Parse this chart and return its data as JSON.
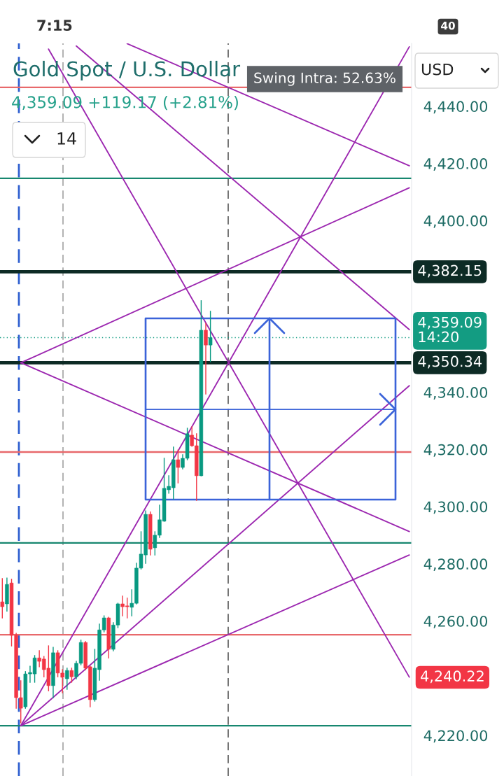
{
  "chart_data": {
    "type": "candlestick",
    "title": "Gold Spot / U.S. Dollar",
    "subtitle": "4,359.09 +119.17 (+2.81%)",
    "categories": [
      null,
      null,
      null,
      null,
      null,
      null,
      null,
      null,
      null,
      null,
      null,
      null,
      null,
      null,
      null,
      null,
      null,
      null,
      null,
      null,
      null,
      null,
      null,
      null,
      null,
      null,
      null,
      null,
      null,
      null,
      null,
      null,
      null,
      null,
      null,
      null,
      null,
      null,
      null,
      null,
      null,
      null,
      null,
      null,
      null,
      null,
      null,
      null,
      null,
      null,
      null,
      null,
      null,
      null,
      null,
      null,
      null,
      null,
      null,
      null,
      null,
      null,
      null,
      null,
      null,
      null,
      null,
      null,
      null,
      null,
      null,
      null,
      null,
      null,
      null,
      null,
      null,
      null,
      null,
      null,
      null,
      null,
      null,
      null,
      null,
      null,
      null,
      null,
      null
    ],
    "ohlc": [
      [
        4266.7,
        4274.8,
        4261.1,
        4265.0
      ],
      [
        4266.0,
        4275.0,
        4263.5,
        4272.8
      ],
      [
        4273.3,
        4274.6,
        4251.3,
        4255.0
      ],
      [
        4255.0,
        4255.7,
        4229.5,
        4233.2
      ],
      [
        4233.2,
        4239.1,
        4224.4,
        4229.5
      ],
      [
        4230.0,
        4242.3,
        4229.5,
        4241.5
      ],
      [
        4241.5,
        4244.2,
        4238.6,
        4242.0
      ],
      [
        4241.5,
        4247.9,
        4238.6,
        4247.1
      ],
      [
        4247.1,
        4249.6,
        4244.0,
        4245.9
      ],
      [
        4246.7,
        4247.6,
        4240.5,
        4243.0
      ],
      [
        4243.5,
        4251.3,
        4235.6,
        4237.4
      ],
      [
        4237.4,
        4250.8,
        4233.2,
        4248.9
      ],
      [
        4248.9,
        4249.6,
        4240.5,
        4241.8
      ],
      [
        4241.8,
        4243.0,
        4234.9,
        4240.3
      ],
      [
        4239.8,
        4243.5,
        4236.1,
        4242.7
      ],
      [
        4242.7,
        4243.5,
        4238.6,
        4240.5
      ],
      [
        4240.5,
        4245.9,
        4239.8,
        4245.2
      ],
      [
        4245.2,
        4253.3,
        4244.7,
        4252.5
      ],
      [
        4252.5,
        4252.8,
        4243.0,
        4243.5
      ],
      [
        4244.0,
        4244.2,
        4230.0,
        4232.5
      ],
      [
        4232.5,
        4250.1,
        4232.0,
        4243.5
      ],
      [
        4243.0,
        4258.9,
        4239.3,
        4256.9
      ],
      [
        4256.9,
        4261.8,
        4256.2,
        4261.1
      ],
      [
        4261.1,
        4261.3,
        4247.1,
        4250.1
      ],
      [
        4250.1,
        4259.4,
        4249.6,
        4258.6
      ],
      [
        4258.6,
        4266.2,
        4257.7,
        4266.0
      ],
      [
        4266.0,
        4268.7,
        4261.8,
        4265.0
      ],
      [
        4265.3,
        4268.0,
        4261.1,
        4265.0
      ],
      [
        4264.8,
        4270.9,
        4261.8,
        4266.2
      ],
      [
        4266.2,
        4280.2,
        4266.0,
        4278.5
      ],
      [
        4278.5,
        4291.2,
        4278.2,
        4283.4
      ],
      [
        4283.1,
        4298.5,
        4280.2,
        4297.3
      ],
      [
        4297.3,
        4298.1,
        4283.1,
        4285.1
      ],
      [
        4285.6,
        4291.2,
        4283.1,
        4290.0
      ],
      [
        4290.0,
        4300.5,
        4289.2,
        4295.4
      ],
      [
        4294.9,
        4316.9,
        4294.9,
        4306.4
      ],
      [
        4305.9,
        4310.8,
        4304.7,
        4307.1
      ],
      [
        4306.6,
        4320.8,
        4302.7,
        4316.4
      ],
      [
        4316.4,
        4319.8,
        4308.3,
        4313.7
      ],
      [
        4313.7,
        4318.1,
        4313.2,
        4316.9
      ],
      [
        4316.9,
        4327.4,
        4316.4,
        4325.5
      ],
      [
        4325.0,
        4327.9,
        4321.1,
        4321.3
      ],
      [
        4321.3,
        4325.5,
        4302.2,
        4310.8
      ],
      [
        4310.8,
        4372.0,
        4310.8,
        4361.7
      ],
      [
        4361.7,
        4364.1,
        4339.4,
        4356.5
      ],
      [
        4356.5,
        4368.3,
        4350.7,
        4359.09
      ],
      null,
      null,
      null,
      null,
      null,
      null,
      null,
      null,
      null,
      null,
      null,
      null,
      null,
      null,
      null,
      null,
      null,
      null,
      null,
      null,
      null,
      null,
      null,
      null,
      null,
      null,
      null,
      null,
      null,
      null,
      null,
      null,
      null,
      null,
      null,
      null,
      null,
      null,
      null,
      null,
      null,
      null,
      null
    ],
    "colors": [
      "#f23645",
      "#089981",
      "#f23645",
      "#f23645",
      "#f23645",
      "#089981",
      "#089981",
      "#089981",
      "#f23645",
      "#f23645",
      "#f23645",
      "#089981",
      "#f23645",
      "#f23645",
      "#089981",
      "#f23645",
      "#089981",
      "#089981",
      "#f23645",
      "#f23645",
      "#089981",
      "#089981",
      "#089981",
      "#f23645",
      "#089981",
      "#089981",
      "#f23645",
      "#f23645",
      "#089981",
      "#089981",
      "#089981",
      "#089981",
      "#f23645",
      "#089981",
      "#089981",
      "#089981",
      "#089981",
      "#089981",
      "#f23645",
      "#089981",
      "#089981",
      "#f23645",
      "#f23645",
      "#089981",
      "#f23645",
      "#089981",
      null,
      null,
      null,
      null,
      null,
      null,
      null,
      null,
      null,
      null,
      null,
      null,
      null,
      null,
      null,
      null,
      null,
      null,
      null,
      null,
      null,
      null,
      null,
      null,
      null,
      null,
      null,
      null,
      null,
      null,
      null,
      null,
      null,
      null,
      null,
      null,
      null,
      null,
      null,
      null,
      null,
      null,
      null
    ],
    "series": [
      {
        "type": "line",
        "color": "#9c27b0",
        "values": [
          null,
          null,
          null,
          null,
          4223.4,
          null,
          null,
          null,
          null,
          null,
          null,
          null,
          null,
          null,
          null,
          null,
          null,
          null,
          null,
          null,
          null,
          null,
          null,
          null,
          null,
          null,
          null,
          null,
          null,
          null,
          null,
          null,
          null,
          null,
          null,
          null,
          null,
          null,
          null,
          null,
          null,
          null,
          null,
          null,
          null,
          null,
          null,
          null,
          null,
          null,
          null,
          null,
          null,
          null,
          null,
          null,
          null,
          null,
          null,
          null,
          null,
          null,
          null,
          null,
          null,
          null,
          null,
          null,
          null,
          null,
          null,
          null,
          null,
          null,
          null,
          null,
          null,
          null,
          null,
          null,
          null,
          null,
          null,
          null,
          null,
          null,
          null,
          null,
          4460.8
        ]
      },
      {
        "type": "line",
        "color": "#9c27b0",
        "values": [
          null,
          null,
          null,
          null,
          4223.4,
          null,
          null,
          null,
          null,
          null,
          null,
          null,
          null,
          null,
          null,
          null,
          null,
          null,
          null,
          null,
          null,
          null,
          null,
          null,
          null,
          null,
          null,
          null,
          null,
          null,
          null,
          null,
          null,
          null,
          null,
          null,
          null,
          null,
          null,
          null,
          null,
          null,
          null,
          null,
          null,
          null,
          null,
          null,
          null,
          null,
          null,
          null,
          null,
          null,
          null,
          null,
          null,
          null,
          null,
          null,
          null,
          null,
          null,
          null,
          null,
          null,
          null,
          null,
          null,
          null,
          null,
          null,
          null,
          null,
          null,
          null,
          null,
          null,
          null,
          null,
          null,
          null,
          null,
          null,
          null,
          null,
          null,
          null,
          4342.3
        ]
      },
      {
        "type": "line",
        "color": "#9c27b0",
        "values": [
          null,
          null,
          null,
          null,
          4223.4,
          null,
          null,
          null,
          null,
          null,
          null,
          null,
          null,
          null,
          null,
          null,
          null,
          null,
          null,
          null,
          null,
          null,
          null,
          null,
          null,
          null,
          null,
          null,
          null,
          null,
          null,
          null,
          null,
          null,
          null,
          null,
          null,
          null,
          null,
          null,
          null,
          null,
          null,
          null,
          null,
          null,
          null,
          null,
          null,
          null,
          null,
          null,
          null,
          null,
          null,
          null,
          null,
          null,
          null,
          null,
          null,
          null,
          null,
          null,
          null,
          null,
          null,
          null,
          null,
          null,
          null,
          null,
          null,
          null,
          null,
          null,
          null,
          null,
          null,
          null,
          null,
          null,
          null,
          null,
          null,
          null,
          null,
          null,
          4283.1
        ]
      },
      {
        "type": "line",
        "color": "#9c27b0",
        "values": [
          null,
          null,
          null,
          null,
          4350.3,
          null,
          null,
          null,
          null,
          null,
          null,
          null,
          null,
          null,
          null,
          null,
          null,
          null,
          null,
          null,
          null,
          null,
          null,
          null,
          null,
          null,
          null,
          null,
          null,
          null,
          null,
          null,
          null,
          null,
          null,
          null,
          null,
          null,
          null,
          null,
          null,
          null,
          null,
          null,
          null,
          null,
          null,
          null,
          null,
          null,
          null,
          null,
          null,
          null,
          null,
          null,
          null,
          null,
          null,
          null,
          null,
          null,
          null,
          null,
          null,
          null,
          null,
          null,
          null,
          null,
          null,
          null,
          null,
          null,
          null,
          null,
          null,
          null,
          null,
          null,
          null,
          null,
          null,
          null,
          null,
          null,
          null,
          null,
          4411.5
        ]
      },
      {
        "type": "line",
        "color": "#9c27b0",
        "values": [
          null,
          null,
          null,
          null,
          4350.3,
          null,
          null,
          null,
          null,
          null,
          null,
          null,
          null,
          null,
          null,
          null,
          null,
          null,
          null,
          null,
          null,
          null,
          null,
          null,
          null,
          null,
          null,
          null,
          null,
          null,
          null,
          null,
          null,
          null,
          null,
          null,
          null,
          null,
          null,
          null,
          null,
          null,
          null,
          null,
          null,
          null,
          null,
          null,
          null,
          null,
          null,
          null,
          null,
          null,
          null,
          null,
          null,
          null,
          null,
          null,
          null,
          null,
          null,
          null,
          null,
          null,
          null,
          null,
          null,
          null,
          null,
          null,
          null,
          null,
          null,
          null,
          null,
          null,
          null,
          null,
          null,
          null,
          null,
          null,
          null,
          null,
          null,
          null,
          4291.3
        ]
      },
      {
        "type": "line",
        "color": "#9c27b0",
        "values": [
          null,
          null,
          null,
          null,
          null,
          null,
          null,
          null,
          null,
          null,
          4460.0,
          null,
          null,
          null,
          null,
          null,
          null,
          null,
          null,
          null,
          null,
          null,
          null,
          null,
          null,
          null,
          null,
          null,
          null,
          null,
          null,
          null,
          null,
          null,
          null,
          null,
          null,
          null,
          null,
          null,
          null,
          null,
          null,
          null,
          null,
          null,
          null,
          null,
          null,
          null,
          null,
          null,
          null,
          null,
          null,
          null,
          null,
          null,
          null,
          null,
          null,
          null,
          null,
          null,
          null,
          null,
          null,
          null,
          null,
          null,
          null,
          null,
          null,
          null,
          null,
          null,
          null,
          null,
          null,
          null,
          null,
          null,
          null,
          null,
          null,
          null,
          null,
          null,
          4240.4
        ]
      },
      {
        "type": "line",
        "color": "#9c27b0",
        "values": [
          null,
          null,
          null,
          null,
          null,
          null,
          null,
          null,
          null,
          null,
          null,
          null,
          null,
          null,
          null,
          null,
          4461.1,
          null,
          null,
          null,
          null,
          null,
          null,
          null,
          null,
          null,
          null,
          null,
          null,
          null,
          null,
          null,
          null,
          null,
          null,
          null,
          null,
          null,
          null,
          null,
          null,
          null,
          null,
          null,
          null,
          null,
          null,
          null,
          null,
          null,
          null,
          null,
          null,
          null,
          null,
          null,
          null,
          null,
          null,
          null,
          null,
          null,
          null,
          null,
          null,
          null,
          null,
          null,
          null,
          null,
          null,
          null,
          null,
          null,
          null,
          null,
          null,
          null,
          null,
          null,
          null,
          null,
          null,
          null,
          null,
          null,
          null,
          null,
          4361.9
        ]
      },
      {
        "type": "line",
        "color": "#9c27b0",
        "values": [
          null,
          null,
          null,
          null,
          null,
          null,
          null,
          null,
          null,
          null,
          null,
          null,
          null,
          null,
          null,
          null,
          null,
          null,
          null,
          null,
          null,
          null,
          null,
          null,
          null,
          null,
          null,
          4461.9,
          null,
          null,
          null,
          null,
          null,
          null,
          null,
          null,
          null,
          null,
          null,
          null,
          null,
          null,
          null,
          null,
          null,
          null,
          null,
          null,
          null,
          null,
          null,
          null,
          null,
          null,
          null,
          null,
          null,
          null,
          null,
          null,
          null,
          null,
          null,
          null,
          null,
          null,
          null,
          null,
          null,
          null,
          null,
          null,
          null,
          null,
          null,
          null,
          null,
          null,
          null,
          null,
          null,
          null,
          null,
          null,
          null,
          null,
          null,
          null,
          4419.2
        ]
      },
      {
        "type": "line",
        "color": "#3b63d9",
        "values": [
          null,
          null,
          null,
          null,
          null,
          null,
          null,
          null,
          null,
          null,
          null,
          null,
          null,
          null,
          null,
          null,
          null,
          null,
          null,
          null,
          null,
          null,
          null,
          null,
          null,
          null,
          null,
          null,
          null,
          null,
          null,
          4334.0,
          null,
          null,
          null,
          null,
          null,
          null,
          null,
          null,
          null,
          null,
          null,
          null,
          null,
          null,
          null,
          null,
          null,
          null,
          null,
          null,
          null,
          null,
          null,
          null,
          null,
          null,
          null,
          null,
          null,
          null,
          null,
          null,
          null,
          null,
          null,
          null,
          null,
          null,
          null,
          null,
          null,
          null,
          null,
          null,
          null,
          null,
          null,
          null,
          null,
          null,
          null,
          null,
          null,
          4334.0,
          null,
          null,
          null
        ]
      }
    ],
    "ylim": [
      4205.8,
      4462.0
    ],
    "yticks": [
      {
        "value": 4220,
        "label": "4,220.00"
      },
      {
        "value": 4260,
        "label": "4,260.00"
      },
      {
        "value": 4280,
        "label": "4,280.00"
      },
      {
        "value": 4300,
        "label": "4,300.00"
      },
      {
        "value": 4320,
        "label": "4,320.00"
      },
      {
        "value": 4340,
        "label": "4,340.00"
      },
      {
        "value": 4400,
        "label": "4,400.00"
      },
      {
        "value": 4420,
        "label": "4,420.00"
      },
      {
        "value": 4440,
        "label": "4,440.00"
      }
    ],
    "tick_labels": "y",
    "ref_lines": [
      {
        "axis": "y",
        "value": 4446.6,
        "color": "#e8696b"
      },
      {
        "axis": "y",
        "value": 4414.8,
        "color": "#17876f"
      },
      {
        "axis": "y",
        "value": 4382.15,
        "label": "4,382.15",
        "color": "#0d2b25"
      },
      {
        "axis": "y",
        "value": 4359.09,
        "label": "4,359.09\n14:20",
        "color": "#139c82",
        "line_style": "dotted"
      },
      {
        "axis": "y",
        "value": 4350.34,
        "label": "4,350.34",
        "color": "#0d2b25"
      },
      {
        "axis": "y",
        "value": 4319.1,
        "color": "#e8696b"
      },
      {
        "axis": "y",
        "value": 4287.3,
        "color": "#17876f"
      },
      {
        "axis": "y",
        "value": 4255.2,
        "color": "#e8696b"
      },
      {
        "axis": "y",
        "value": 4223.4,
        "color": "#17876f"
      }
    ],
    "annotations": [
      "7:15",
      "40",
      "Swing Intra: 52.63%",
      "14",
      "USD",
      "4,240.22"
    ]
  }
}
